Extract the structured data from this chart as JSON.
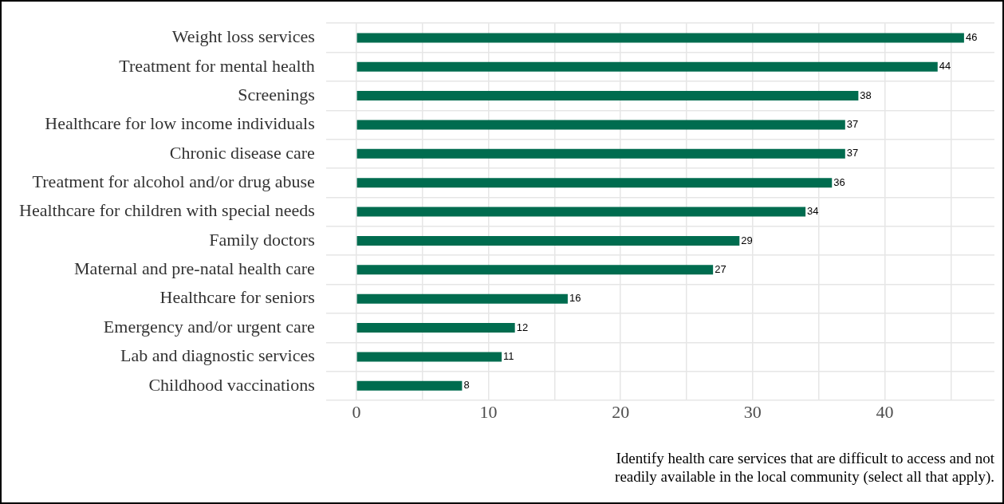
{
  "chart_data": {
    "type": "bar",
    "orientation": "horizontal",
    "categories": [
      "Weight loss services",
      "Treatment for mental health",
      "Screenings",
      "Healthcare for low income individuals",
      "Chronic disease care",
      "Treatment for alcohol and/or drug abuse",
      "Healthcare for children with special needs",
      "Family doctors",
      "Maternal and pre-natal health care",
      "Healthcare for seniors",
      "Emergency and/or urgent care",
      "Lab and diagnostic services",
      "Childhood vaccinations"
    ],
    "values": [
      46,
      44,
      38,
      37,
      37,
      36,
      34,
      29,
      27,
      16,
      12,
      11,
      8
    ],
    "color": "#006c4f",
    "xlabel": "Identify health care services that are difficult to access and not readily available in the local community (select all that apply).",
    "xlim": [
      -2.3,
      48.3
    ],
    "xticks": [
      0,
      {
        "value": 5,
        "label": null
      },
      10,
      {
        "value": 15,
        "label": null
      },
      20,
      {
        "value": 25,
        "label": null
      },
      30,
      {
        "value": 35,
        "label": null
      },
      40,
      {
        "value": 45,
        "label": null
      }
    ],
    "grid": true,
    "data_labels": true,
    "legend": false
  }
}
